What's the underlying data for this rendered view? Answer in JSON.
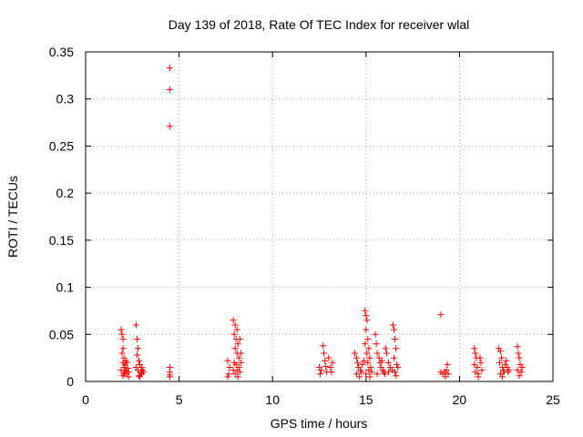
{
  "chart_data": {
    "type": "scatter",
    "title": "Day 139 of 2018, Rate Of TEC Index for receiver wlal",
    "xlabel": "GPS time / hours",
    "ylabel": "ROTI / TECUs",
    "xlim": [
      0,
      25
    ],
    "ylim": [
      0,
      0.35
    ],
    "grid": true,
    "marker": "+",
    "color": "#ff0000",
    "x_ticks": [
      0,
      5,
      10,
      15,
      20,
      25
    ],
    "x_tick_labels": [
      "0",
      "5",
      "10",
      "15",
      "20",
      "25"
    ],
    "y_ticks": [
      0,
      0.05,
      0.1,
      0.15,
      0.2,
      0.25,
      0.3,
      0.35
    ],
    "y_tick_labels": [
      "0",
      "0.05",
      "0.1",
      "0.15",
      "0.2",
      "0.25",
      "0.3",
      "0.35"
    ],
    "series": [
      {
        "name": "ROTI",
        "points": [
          [
            1.9,
            0.055
          ],
          [
            1.95,
            0.05
          ],
          [
            2.0,
            0.045
          ],
          [
            2.0,
            0.035
          ],
          [
            1.95,
            0.03
          ],
          [
            2.05,
            0.025
          ],
          [
            2.0,
            0.02
          ],
          [
            2.1,
            0.018
          ],
          [
            2.05,
            0.015
          ],
          [
            2.15,
            0.012
          ],
          [
            2.1,
            0.01
          ],
          [
            2.2,
            0.008
          ],
          [
            2.0,
            0.006
          ],
          [
            2.25,
            0.014
          ],
          [
            2.3,
            0.01
          ],
          [
            1.9,
            0.012
          ],
          [
            2.15,
            0.022
          ],
          [
            2.2,
            0.02
          ],
          [
            2.05,
            0.008
          ],
          [
            2.3,
            0.005
          ],
          [
            2.7,
            0.06
          ],
          [
            2.75,
            0.045
          ],
          [
            2.8,
            0.035
          ],
          [
            2.75,
            0.028
          ],
          [
            2.85,
            0.022
          ],
          [
            2.9,
            0.018
          ],
          [
            2.7,
            0.015
          ],
          [
            2.8,
            0.012
          ],
          [
            2.95,
            0.01
          ],
          [
            3.0,
            0.008
          ],
          [
            2.85,
            0.006
          ],
          [
            3.05,
            0.012
          ],
          [
            3.1,
            0.01
          ],
          [
            2.9,
            0.005
          ],
          [
            3.0,
            0.015
          ],
          [
            4.5,
            0.333
          ],
          [
            4.5,
            0.31
          ],
          [
            4.5,
            0.271
          ],
          [
            4.5,
            0.015
          ],
          [
            4.5,
            0.01
          ],
          [
            4.5,
            0.007
          ],
          [
            4.5,
            0.005
          ],
          [
            7.6,
            0.022
          ],
          [
            7.7,
            0.015
          ],
          [
            7.65,
            0.008
          ],
          [
            7.6,
            0.005
          ],
          [
            7.9,
            0.065
          ],
          [
            8.0,
            0.06
          ],
          [
            8.1,
            0.055
          ],
          [
            7.95,
            0.05
          ],
          [
            8.05,
            0.045
          ],
          [
            8.15,
            0.04
          ],
          [
            8.0,
            0.035
          ],
          [
            8.1,
            0.03
          ],
          [
            8.2,
            0.025
          ],
          [
            7.95,
            0.02
          ],
          [
            8.05,
            0.018
          ],
          [
            8.2,
            0.015
          ],
          [
            8.1,
            0.012
          ],
          [
            8.25,
            0.01
          ],
          [
            8.0,
            0.008
          ],
          [
            8.15,
            0.005
          ],
          [
            8.3,
            0.02
          ],
          [
            8.3,
            0.03
          ],
          [
            7.9,
            0.012
          ],
          [
            8.25,
            0.045
          ],
          [
            12.5,
            0.015
          ],
          [
            12.6,
            0.012
          ],
          [
            12.55,
            0.008
          ],
          [
            12.7,
            0.038
          ],
          [
            12.75,
            0.03
          ],
          [
            12.8,
            0.022
          ],
          [
            12.85,
            0.016
          ],
          [
            12.9,
            0.01
          ],
          [
            13.0,
            0.025
          ],
          [
            13.1,
            0.015
          ],
          [
            13.15,
            0.01
          ],
          [
            13.2,
            0.02
          ],
          [
            14.4,
            0.03
          ],
          [
            14.5,
            0.025
          ],
          [
            14.55,
            0.02
          ],
          [
            14.6,
            0.015
          ],
          [
            14.7,
            0.012
          ],
          [
            14.75,
            0.01
          ],
          [
            14.5,
            0.008
          ],
          [
            14.65,
            0.005
          ],
          [
            14.8,
            0.018
          ],
          [
            14.9,
            0.022
          ],
          [
            14.95,
            0.075
          ],
          [
            15.0,
            0.07
          ],
          [
            15.05,
            0.065
          ],
          [
            15.0,
            0.055
          ],
          [
            15.1,
            0.045
          ],
          [
            14.95,
            0.04
          ],
          [
            15.15,
            0.035
          ],
          [
            15.05,
            0.03
          ],
          [
            15.2,
            0.025
          ],
          [
            15.1,
            0.02
          ],
          [
            15.25,
            0.015
          ],
          [
            15.15,
            0.012
          ],
          [
            15.3,
            0.01
          ],
          [
            15.0,
            0.008
          ],
          [
            15.2,
            0.005
          ],
          [
            15.5,
            0.05
          ],
          [
            15.55,
            0.04
          ],
          [
            15.6,
            0.03
          ],
          [
            15.7,
            0.025
          ],
          [
            15.75,
            0.02
          ],
          [
            15.8,
            0.015
          ],
          [
            15.9,
            0.012
          ],
          [
            15.95,
            0.01
          ],
          [
            16.0,
            0.008
          ],
          [
            16.05,
            0.035
          ],
          [
            16.1,
            0.03
          ],
          [
            16.2,
            0.02
          ],
          [
            16.3,
            0.015
          ],
          [
            16.2,
            0.01
          ],
          [
            16.4,
            0.012
          ],
          [
            16.45,
            0.06
          ],
          [
            16.5,
            0.055
          ],
          [
            16.55,
            0.045
          ],
          [
            16.6,
            0.035
          ],
          [
            16.5,
            0.025
          ],
          [
            16.65,
            0.018
          ],
          [
            16.55,
            0.01
          ],
          [
            16.6,
            0.006
          ],
          [
            16.7,
            0.015
          ],
          [
            15.6,
            0.008
          ],
          [
            15.85,
            0.022
          ],
          [
            19.0,
            0.071
          ],
          [
            19.0,
            0.01
          ],
          [
            19.1,
            0.008
          ],
          [
            19.2,
            0.01
          ],
          [
            19.25,
            0.005
          ],
          [
            19.35,
            0.018
          ],
          [
            19.3,
            0.012
          ],
          [
            19.4,
            0.008
          ],
          [
            20.8,
            0.035
          ],
          [
            20.85,
            0.03
          ],
          [
            20.9,
            0.025
          ],
          [
            20.8,
            0.018
          ],
          [
            20.95,
            0.015
          ],
          [
            20.85,
            0.01
          ],
          [
            21.0,
            0.008
          ],
          [
            21.1,
            0.025
          ],
          [
            21.15,
            0.02
          ],
          [
            21.0,
            0.005
          ],
          [
            21.2,
            0.012
          ],
          [
            22.1,
            0.035
          ],
          [
            22.2,
            0.032
          ],
          [
            22.25,
            0.025
          ],
          [
            22.15,
            0.02
          ],
          [
            22.3,
            0.015
          ],
          [
            22.35,
            0.012
          ],
          [
            22.4,
            0.01
          ],
          [
            22.2,
            0.008
          ],
          [
            22.45,
            0.018
          ],
          [
            22.5,
            0.022
          ],
          [
            22.55,
            0.015
          ],
          [
            22.6,
            0.01
          ],
          [
            22.3,
            0.005
          ],
          [
            22.65,
            0.012
          ],
          [
            23.1,
            0.037
          ],
          [
            23.15,
            0.03
          ],
          [
            23.2,
            0.025
          ],
          [
            23.25,
            0.018
          ],
          [
            23.1,
            0.012
          ],
          [
            23.3,
            0.01
          ],
          [
            23.2,
            0.006
          ],
          [
            23.35,
            0.015
          ]
        ]
      }
    ]
  }
}
